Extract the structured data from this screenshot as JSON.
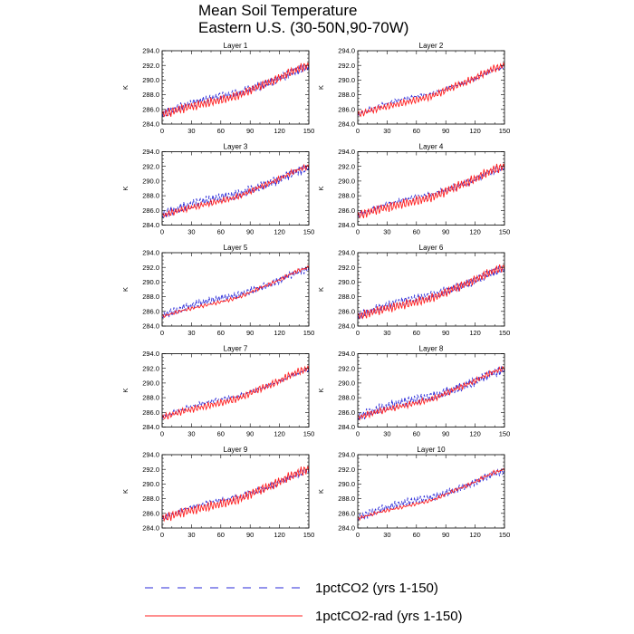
{
  "figure": {
    "title_lines": [
      "Mean Soil Temperature",
      "Eastern U.S. (30-50N,90-70W)"
    ]
  },
  "chart_data": {
    "type": "line",
    "title": "Mean Soil Temperature Eastern U.S. (30-50N,90-70W)",
    "ylabel": "K",
    "xlabel": "",
    "xlim": [
      0,
      150
    ],
    "ylim": [
      284.0,
      294.0
    ],
    "xticks": [
      0,
      30,
      60,
      90,
      120,
      150
    ],
    "yticks": [
      284.0,
      286.0,
      288.0,
      290.0,
      292.0,
      294.0
    ],
    "ytick_labels": [
      "284.0",
      "286.0",
      "288.0",
      "290.0",
      "292.0",
      "294.0"
    ],
    "grid": false,
    "legend_position": "bottom",
    "series_styles": [
      {
        "name": "1pctCO2 (yrs 1-150)",
        "color": "#2a2ad8",
        "dash": "dashed"
      },
      {
        "name": "1pctCO2-rad (yrs 1-150)",
        "color": "#ff1f1f",
        "dash": "solid"
      }
    ],
    "panels": [
      {
        "name": "Layer 1",
        "series": [
          {
            "name": "1pctCO2 (yrs 1-150)",
            "x": [
              0,
              10,
              20,
              30,
              40,
              50,
              60,
              70,
              80,
              90,
              100,
              110,
              120,
              130,
              140,
              150
            ],
            "values": [
              285.4,
              285.9,
              286.4,
              286.8,
              287.2,
              287.5,
              287.8,
              288.0,
              288.3,
              288.8,
              289.2,
              289.7,
              290.2,
              290.9,
              291.4,
              291.8
            ]
          },
          {
            "name": "1pctCO2-rad (yrs 1-150)",
            "x": [
              0,
              10,
              20,
              30,
              40,
              50,
              60,
              70,
              80,
              90,
              100,
              110,
              120,
              130,
              140,
              150
            ],
            "values": [
              285.3,
              285.7,
              286.1,
              286.4,
              286.7,
              287.0,
              287.3,
              287.6,
              288.0,
              288.6,
              289.2,
              289.7,
              290.3,
              291.0,
              291.6,
              292.0
            ]
          }
        ]
      },
      {
        "name": "Layer 2",
        "series": [
          {
            "name": "1pctCO2 (yrs 1-150)",
            "x": [
              0,
              10,
              20,
              30,
              40,
              50,
              60,
              70,
              80,
              90,
              100,
              110,
              120,
              130,
              140,
              150
            ],
            "values": [
              285.4,
              285.9,
              286.4,
              286.8,
              287.2,
              287.5,
              287.8,
              288.0,
              288.3,
              288.8,
              289.2,
              289.7,
              290.2,
              290.9,
              291.4,
              291.8
            ]
          },
          {
            "name": "1pctCO2-rad (yrs 1-150)",
            "x": [
              0,
              10,
              20,
              30,
              40,
              50,
              60,
              70,
              80,
              90,
              100,
              110,
              120,
              130,
              140,
              150
            ],
            "values": [
              285.3,
              285.7,
              286.1,
              286.4,
              286.7,
              287.0,
              287.3,
              287.6,
              288.0,
              288.6,
              289.2,
              289.7,
              290.3,
              291.0,
              291.6,
              292.0
            ]
          }
        ]
      },
      {
        "name": "Layer 3",
        "series": [
          {
            "name": "1pctCO2 (yrs 1-150)",
            "x": [
              0,
              10,
              20,
              30,
              40,
              50,
              60,
              70,
              80,
              90,
              100,
              110,
              120,
              130,
              140,
              150
            ],
            "values": [
              285.4,
              285.9,
              286.4,
              286.8,
              287.2,
              287.5,
              287.8,
              288.0,
              288.3,
              288.8,
              289.2,
              289.7,
              290.2,
              290.9,
              291.4,
              291.8
            ]
          },
          {
            "name": "1pctCO2-rad (yrs 1-150)",
            "x": [
              0,
              10,
              20,
              30,
              40,
              50,
              60,
              70,
              80,
              90,
              100,
              110,
              120,
              130,
              140,
              150
            ],
            "values": [
              285.3,
              285.7,
              286.1,
              286.4,
              286.7,
              287.0,
              287.3,
              287.6,
              288.0,
              288.6,
              289.2,
              289.7,
              290.3,
              291.0,
              291.6,
              292.0
            ]
          }
        ]
      },
      {
        "name": "Layer 4",
        "series": [
          {
            "name": "1pctCO2 (yrs 1-150)",
            "x": [
              0,
              10,
              20,
              30,
              40,
              50,
              60,
              70,
              80,
              90,
              100,
              110,
              120,
              130,
              140,
              150
            ],
            "values": [
              285.4,
              285.9,
              286.4,
              286.8,
              287.2,
              287.5,
              287.8,
              288.0,
              288.3,
              288.8,
              289.2,
              289.7,
              290.2,
              290.9,
              291.4,
              291.8
            ]
          },
          {
            "name": "1pctCO2-rad (yrs 1-150)",
            "x": [
              0,
              10,
              20,
              30,
              40,
              50,
              60,
              70,
              80,
              90,
              100,
              110,
              120,
              130,
              140,
              150
            ],
            "values": [
              285.3,
              285.7,
              286.1,
              286.4,
              286.7,
              287.0,
              287.3,
              287.6,
              288.0,
              288.6,
              289.2,
              289.7,
              290.3,
              291.0,
              291.6,
              292.0
            ]
          }
        ]
      },
      {
        "name": "Layer 5",
        "series": [
          {
            "name": "1pctCO2 (yrs 1-150)",
            "x": [
              0,
              10,
              20,
              30,
              40,
              50,
              60,
              70,
              80,
              90,
              100,
              110,
              120,
              130,
              140,
              150
            ],
            "values": [
              285.4,
              285.9,
              286.4,
              286.8,
              287.2,
              287.5,
              287.8,
              288.0,
              288.3,
              288.8,
              289.2,
              289.7,
              290.2,
              290.9,
              291.4,
              291.8
            ]
          },
          {
            "name": "1pctCO2-rad (yrs 1-150)",
            "x": [
              0,
              10,
              20,
              30,
              40,
              50,
              60,
              70,
              80,
              90,
              100,
              110,
              120,
              130,
              140,
              150
            ],
            "values": [
              285.3,
              285.7,
              286.1,
              286.4,
              286.7,
              287.0,
              287.3,
              287.6,
              288.0,
              288.6,
              289.2,
              289.7,
              290.3,
              291.0,
              291.6,
              292.0
            ]
          }
        ]
      },
      {
        "name": "Layer 6",
        "series": [
          {
            "name": "1pctCO2 (yrs 1-150)",
            "x": [
              0,
              10,
              20,
              30,
              40,
              50,
              60,
              70,
              80,
              90,
              100,
              110,
              120,
              130,
              140,
              150
            ],
            "values": [
              285.4,
              285.9,
              286.4,
              286.8,
              287.2,
              287.5,
              287.8,
              288.0,
              288.3,
              288.8,
              289.2,
              289.7,
              290.2,
              290.9,
              291.4,
              291.8
            ]
          },
          {
            "name": "1pctCO2-rad (yrs 1-150)",
            "x": [
              0,
              10,
              20,
              30,
              40,
              50,
              60,
              70,
              80,
              90,
              100,
              110,
              120,
              130,
              140,
              150
            ],
            "values": [
              285.3,
              285.7,
              286.1,
              286.4,
              286.7,
              287.0,
              287.3,
              287.6,
              288.0,
              288.6,
              289.2,
              289.7,
              290.3,
              291.0,
              291.6,
              292.0
            ]
          }
        ]
      },
      {
        "name": "Layer 7",
        "series": [
          {
            "name": "1pctCO2 (yrs 1-150)",
            "x": [
              0,
              10,
              20,
              30,
              40,
              50,
              60,
              70,
              80,
              90,
              100,
              110,
              120,
              130,
              140,
              150
            ],
            "values": [
              285.4,
              285.9,
              286.4,
              286.8,
              287.2,
              287.5,
              287.8,
              288.0,
              288.3,
              288.8,
              289.2,
              289.7,
              290.2,
              290.9,
              291.4,
              291.8
            ]
          },
          {
            "name": "1pctCO2-rad (yrs 1-150)",
            "x": [
              0,
              10,
              20,
              30,
              40,
              50,
              60,
              70,
              80,
              90,
              100,
              110,
              120,
              130,
              140,
              150
            ],
            "values": [
              285.3,
              285.7,
              286.1,
              286.4,
              286.7,
              287.0,
              287.3,
              287.6,
              288.0,
              288.6,
              289.2,
              289.7,
              290.3,
              291.0,
              291.6,
              292.0
            ]
          }
        ]
      },
      {
        "name": "Layer 8",
        "series": [
          {
            "name": "1pctCO2 (yrs 1-150)",
            "x": [
              0,
              10,
              20,
              30,
              40,
              50,
              60,
              70,
              80,
              90,
              100,
              110,
              120,
              130,
              140,
              150
            ],
            "values": [
              285.4,
              285.9,
              286.4,
              286.8,
              287.2,
              287.5,
              287.8,
              288.0,
              288.3,
              288.8,
              289.2,
              289.7,
              290.2,
              290.9,
              291.4,
              291.8
            ]
          },
          {
            "name": "1pctCO2-rad (yrs 1-150)",
            "x": [
              0,
              10,
              20,
              30,
              40,
              50,
              60,
              70,
              80,
              90,
              100,
              110,
              120,
              130,
              140,
              150
            ],
            "values": [
              285.3,
              285.7,
              286.1,
              286.4,
              286.7,
              287.0,
              287.3,
              287.6,
              288.0,
              288.6,
              289.2,
              289.7,
              290.3,
              291.0,
              291.6,
              292.0
            ]
          }
        ]
      },
      {
        "name": "Layer 9",
        "series": [
          {
            "name": "1pctCO2 (yrs 1-150)",
            "x": [
              0,
              10,
              20,
              30,
              40,
              50,
              60,
              70,
              80,
              90,
              100,
              110,
              120,
              130,
              140,
              150
            ],
            "values": [
              285.4,
              285.9,
              286.4,
              286.8,
              287.2,
              287.5,
              287.8,
              288.0,
              288.3,
              288.8,
              289.2,
              289.7,
              290.2,
              290.9,
              291.4,
              291.8
            ]
          },
          {
            "name": "1pctCO2-rad (yrs 1-150)",
            "x": [
              0,
              10,
              20,
              30,
              40,
              50,
              60,
              70,
              80,
              90,
              100,
              110,
              120,
              130,
              140,
              150
            ],
            "values": [
              285.3,
              285.7,
              286.1,
              286.4,
              286.7,
              287.0,
              287.3,
              287.6,
              288.0,
              288.6,
              289.2,
              289.7,
              290.3,
              291.0,
              291.6,
              292.0
            ]
          }
        ]
      },
      {
        "name": "Layer 10",
        "series": [
          {
            "name": "1pctCO2 (yrs 1-150)",
            "x": [
              0,
              10,
              20,
              30,
              40,
              50,
              60,
              70,
              80,
              90,
              100,
              110,
              120,
              130,
              140,
              150
            ],
            "values": [
              285.4,
              285.9,
              286.4,
              286.8,
              287.2,
              287.5,
              287.8,
              288.0,
              288.3,
              288.8,
              289.2,
              289.7,
              290.2,
              290.9,
              291.4,
              291.8
            ]
          },
          {
            "name": "1pctCO2-rad (yrs 1-150)",
            "x": [
              0,
              10,
              20,
              30,
              40,
              50,
              60,
              70,
              80,
              90,
              100,
              110,
              120,
              130,
              140,
              150
            ],
            "values": [
              285.3,
              285.7,
              286.1,
              286.4,
              286.7,
              287.0,
              287.3,
              287.6,
              288.0,
              288.6,
              289.2,
              289.7,
              290.3,
              291.0,
              291.6,
              292.0
            ]
          }
        ]
      }
    ]
  }
}
